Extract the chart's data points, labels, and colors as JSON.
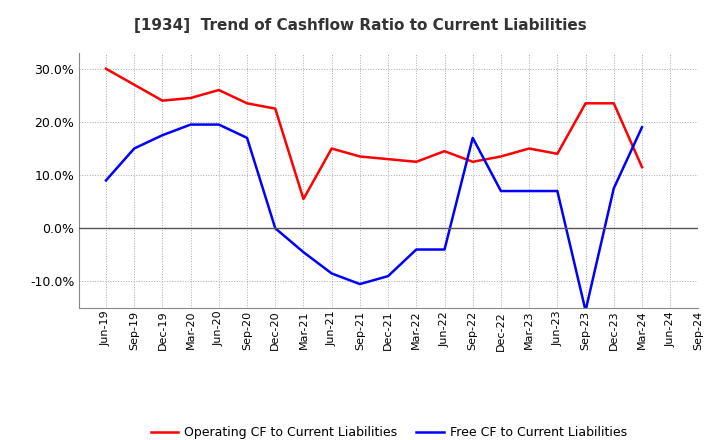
{
  "title": "[1934]  Trend of Cashflow Ratio to Current Liabilities",
  "x_labels": [
    "Jun-19",
    "Sep-19",
    "Dec-19",
    "Mar-20",
    "Jun-20",
    "Sep-20",
    "Dec-20",
    "Mar-21",
    "Jun-21",
    "Sep-21",
    "Dec-21",
    "Mar-22",
    "Jun-22",
    "Sep-22",
    "Dec-22",
    "Mar-23",
    "Jun-23",
    "Sep-23",
    "Dec-23",
    "Mar-24",
    "Jun-24",
    "Sep-24"
  ],
  "operating_cf": [
    30.0,
    27.0,
    24.0,
    24.5,
    26.0,
    23.5,
    22.5,
    5.5,
    15.0,
    13.5,
    13.0,
    12.5,
    14.5,
    12.5,
    13.5,
    15.0,
    14.0,
    23.5,
    23.5,
    11.5,
    null,
    null
  ],
  "free_cf": [
    9.0,
    15.0,
    17.5,
    19.5,
    19.5,
    17.0,
    0.0,
    -4.5,
    -8.5,
    -10.5,
    -9.0,
    -4.0,
    -4.0,
    17.0,
    7.0,
    7.0,
    7.0,
    -15.5,
    7.5,
    19.0,
    null,
    null
  ],
  "operating_color": "#ff0000",
  "free_color": "#0000ff",
  "ylim": [
    -15,
    33
  ],
  "yticks": [
    -10,
    0,
    10,
    20,
    30
  ],
  "background_color": "#ffffff",
  "plot_bg_color": "#ffffff",
  "grid_color": "#aaaaaa",
  "zero_line_color": "#555555",
  "spine_color": "#888888",
  "title_fontsize": 11,
  "tick_fontsize": 8,
  "legend_operating": "Operating CF to Current Liabilities",
  "legend_free": "Free CF to Current Liabilities",
  "legend_fontsize": 9
}
